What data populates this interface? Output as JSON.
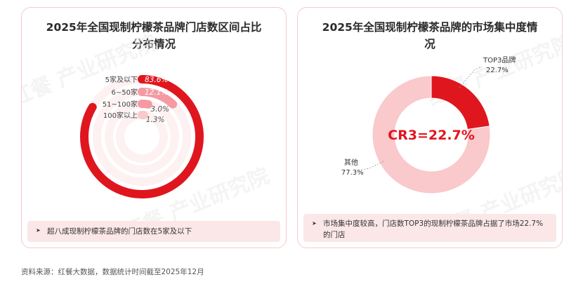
{
  "left_card": {
    "title": "2025年全国现制柠檬茶品牌门店数区间占比分布情况",
    "note": "超八成现制柠檬茶品牌的门店数在5家及以下"
  },
  "right_card": {
    "title": "2025年全国现制柠檬茶品牌的市场集中度情况",
    "center_label": "CR3=22.7%",
    "note": "市场集中度较高，门店数TOP3的现制柠檬茶品牌占据了市场22.7%的门店"
  },
  "watermark_text": "红餐 产业研究院",
  "source": "资料来源：红餐大数据，数据统计时间截至2025年12月",
  "colors": {
    "red": "#e0161f",
    "pink": "#f59aa2",
    "light_pink": "#f9c9cc",
    "note_bg": "#fbe7e8"
  },
  "chart_data": [
    {
      "type": "radial-bar",
      "categories": [
        "5家及以下",
        "6~50家",
        "51~100家",
        "100家以上"
      ],
      "values": [
        83.6,
        12.1,
        3.0,
        1.3
      ],
      "value_labels": [
        "83.6%",
        "12.1%",
        "3.0%",
        "1.3%"
      ],
      "unit": "%"
    },
    {
      "type": "pie",
      "donut": true,
      "categories": [
        "TOP3品牌",
        "其他"
      ],
      "values": [
        22.7,
        77.3
      ],
      "value_labels": [
        "22.7%",
        "77.3%"
      ],
      "unit": "%"
    }
  ]
}
